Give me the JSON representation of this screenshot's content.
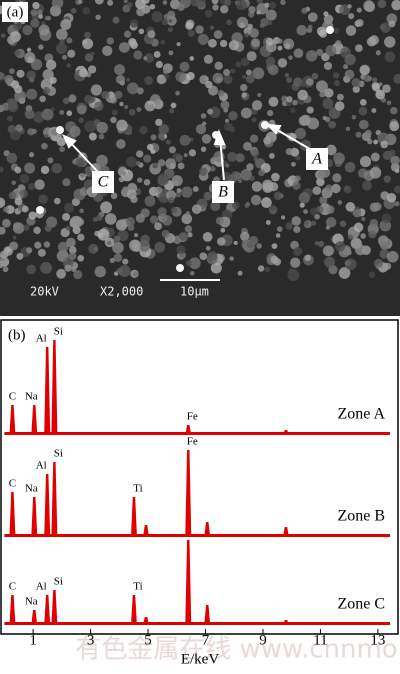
{
  "figure_a": {
    "panel": "(a)",
    "pointers": [
      "A",
      "B",
      "C"
    ],
    "info": [
      "20kV",
      "X2,000",
      "10μm"
    ]
  },
  "chart_data": {
    "type": "spectrum",
    "title": "(b)",
    "x_label": "E/keV",
    "xlim": [
      0,
      13.7
    ],
    "xticks": [
      1,
      3,
      5,
      7,
      9,
      11,
      13
    ],
    "ylim": [
      0,
      100
    ],
    "series": [
      {
        "name": "Zone A",
        "color": "#e00000",
        "peaks": [
          {
            "label": "C",
            "energy": 0.28,
            "value": 30
          },
          {
            "label": "Na",
            "energy": 1.04,
            "value": 30
          },
          {
            "label": "Al",
            "energy": 1.49,
            "value": 88
          },
          {
            "label": "Si",
            "energy": 1.74,
            "value": 95
          },
          {
            "label": "Fe",
            "energy": 6.4,
            "value": 10
          },
          {
            "energy": 7.06,
            "value": 3
          },
          {
            "energy": 9.8,
            "value": 5
          }
        ]
      },
      {
        "name": "Zone B",
        "color": "#e00000",
        "peaks": [
          {
            "label": "C",
            "energy": 0.28,
            "value": 45
          },
          {
            "label": "Na",
            "energy": 1.04,
            "value": 40
          },
          {
            "label": "Al",
            "energy": 1.49,
            "value": 63
          },
          {
            "label": "Si",
            "energy": 1.74,
            "value": 75
          },
          {
            "label": "Ti",
            "energy": 4.51,
            "value": 40
          },
          {
            "energy": 4.93,
            "value": 12
          },
          {
            "label": "Fe",
            "energy": 6.4,
            "value": 87
          },
          {
            "energy": 7.06,
            "value": 15
          },
          {
            "energy": 9.8,
            "value": 10
          }
        ]
      },
      {
        "name": "Zone C",
        "color": "#e00000",
        "peaks": [
          {
            "label": "C",
            "energy": 0.28,
            "value": 30
          },
          {
            "label": "Na",
            "energy": 1.04,
            "value": 15
          },
          {
            "label": "Al",
            "energy": 1.49,
            "value": 30
          },
          {
            "label": "Si",
            "energy": 1.74,
            "value": 35
          },
          {
            "label": "Ti",
            "energy": 4.51,
            "value": 30
          },
          {
            "energy": 4.93,
            "value": 8
          },
          {
            "energy": 6.4,
            "value": 85
          },
          {
            "energy": 7.06,
            "value": 20
          },
          {
            "energy": 9.8,
            "value": 5
          }
        ]
      }
    ]
  },
  "watermark": "有色金属在线 www.cnnmol.com"
}
